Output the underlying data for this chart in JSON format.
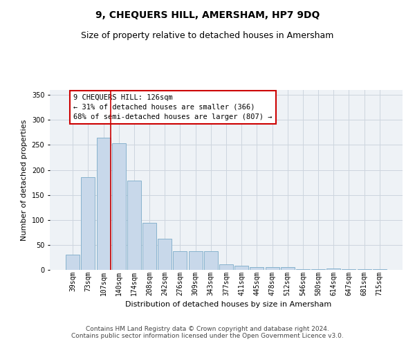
{
  "title": "9, CHEQUERS HILL, AMERSHAM, HP7 9DQ",
  "subtitle": "Size of property relative to detached houses in Amersham",
  "xlabel": "Distribution of detached houses by size in Amersham",
  "ylabel": "Number of detached properties",
  "categories": [
    "39sqm",
    "73sqm",
    "107sqm",
    "140sqm",
    "174sqm",
    "208sqm",
    "242sqm",
    "276sqm",
    "309sqm",
    "343sqm",
    "377sqm",
    "411sqm",
    "445sqm",
    "478sqm",
    "512sqm",
    "546sqm",
    "580sqm",
    "614sqm",
    "647sqm",
    "681sqm",
    "715sqm"
  ],
  "values": [
    30,
    185,
    265,
    253,
    179,
    94,
    63,
    38,
    38,
    38,
    11,
    8,
    6,
    6,
    5,
    2,
    2,
    3,
    1,
    1,
    2
  ],
  "bar_color": "#c8d8ea",
  "bar_edge_color": "#7aaac8",
  "grid_color": "#ccd5de",
  "background_color": "#eef2f6",
  "vline_x_index": 2.45,
  "vline_color": "#cc0000",
  "annotation_text": "9 CHEQUERS HILL: 126sqm\n← 31% of detached houses are smaller (366)\n68% of semi-detached houses are larger (807) →",
  "annotation_box_color": "#ffffff",
  "annotation_box_edge_color": "#cc0000",
  "footer": "Contains HM Land Registry data © Crown copyright and database right 2024.\nContains public sector information licensed under the Open Government Licence v3.0.",
  "ylim": [
    0,
    360
  ],
  "title_fontsize": 10,
  "subtitle_fontsize": 9,
  "xlabel_fontsize": 8,
  "ylabel_fontsize": 8,
  "tick_fontsize": 7,
  "annotation_fontsize": 7.5,
  "footer_fontsize": 6.5
}
